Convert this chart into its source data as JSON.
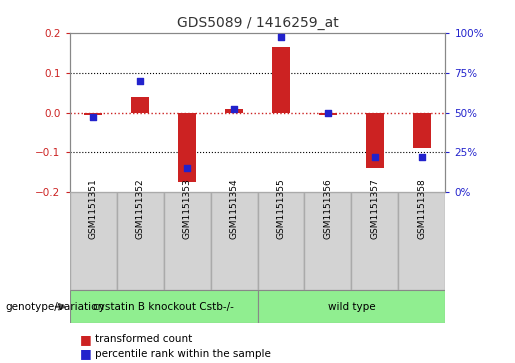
{
  "title": "GDS5089 / 1416259_at",
  "samples": [
    "GSM1151351",
    "GSM1151352",
    "GSM1151353",
    "GSM1151354",
    "GSM1151355",
    "GSM1151356",
    "GSM1151357",
    "GSM1151358"
  ],
  "transformed_count": [
    -0.005,
    0.04,
    -0.175,
    0.008,
    0.165,
    -0.005,
    -0.14,
    -0.09
  ],
  "percentile_rank": [
    47,
    70,
    15,
    52,
    97,
    50,
    22,
    22
  ],
  "groups": [
    {
      "label": "cystatin B knockout Cstb-/-",
      "start": 0,
      "end": 4,
      "color": "#90EE90"
    },
    {
      "label": "wild type",
      "start": 4,
      "end": 8,
      "color": "#90EE90"
    }
  ],
  "ylim_left": [
    -0.2,
    0.2
  ],
  "ylim_right": [
    0,
    100
  ],
  "yticks_left": [
    -0.2,
    -0.1,
    0.0,
    0.1,
    0.2
  ],
  "yticks_right": [
    0,
    25,
    50,
    75,
    100
  ],
  "bar_color": "#CC2222",
  "dot_color": "#2222CC",
  "zero_line_color": "#CC2222",
  "grid_color": "#000000",
  "legend_items": [
    "transformed count",
    "percentile rank within the sample"
  ],
  "genotype_label": "genotype/variation",
  "background_color": "#FFFFFF",
  "label_box_color": "#D3D3D3",
  "label_box_edge": "#AAAAAA",
  "bar_width": 0.4
}
